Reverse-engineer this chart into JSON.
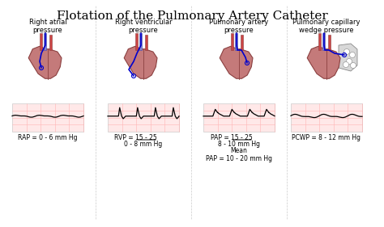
{
  "title": "Flotation of the Pulmonary Artery Catheter",
  "title_fontsize": 11,
  "bg_color": "#ffffff",
  "grid_color": "#ffb3b3",
  "sections": [
    {
      "label": "Right atrial\npressure",
      "value_text": "RAP = 0 - 6 mm Hg",
      "waveform_type": "atrial"
    },
    {
      "label": "Right ventricular\npressure",
      "value_text1": "RVP = ",
      "value_nums1": "15 - 25",
      "value_text2": "0 - 8 mm Hg",
      "waveform_type": "ventricular"
    },
    {
      "label": "Pulmonary artery\npressure",
      "value_text1": "PAP = ",
      "value_nums1": "15 - 25",
      "value_text2": "8 - 10 mm Hg",
      "value_text3": "Mean\nPAP = 10 - 20 mm Hg",
      "waveform_type": "pulmonary"
    },
    {
      "label": "Pulmonary capillary\nwedge pressure",
      "value_text": "PCWP = 8 - 12 mm Hg",
      "waveform_type": "wedge"
    }
  ],
  "heart_color": "#c47a7a",
  "heart_edge": "#8b4040",
  "catheter_color": "#0000cc",
  "vessel_color": "#d4a0a0",
  "lung_color": "#d0d0d0"
}
